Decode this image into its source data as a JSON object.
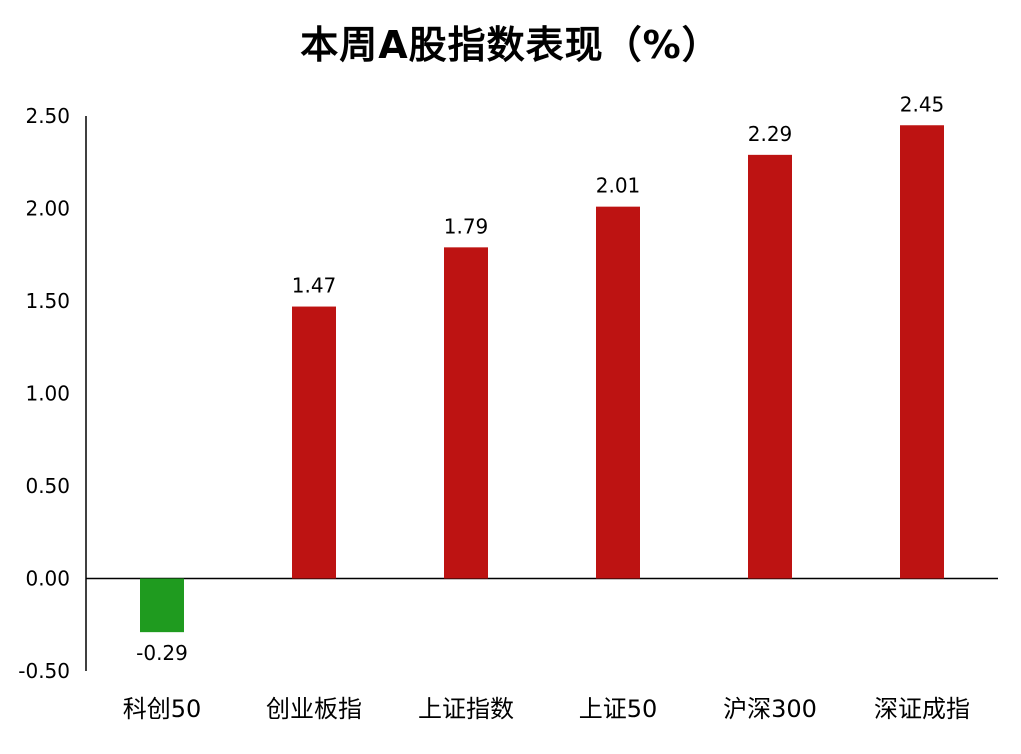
{
  "chart_data": {
    "type": "bar",
    "title": "本周A股指数表现（%）",
    "categories": [
      "科创50",
      "创业板指",
      "上证指数",
      "上证50",
      "沪深300",
      "深证成指"
    ],
    "values": [
      -0.29,
      1.47,
      1.79,
      2.01,
      2.29,
      2.45
    ],
    "data_labels": [
      "-0.29",
      "1.47",
      "1.79",
      "2.01",
      "2.29",
      "2.45"
    ],
    "ylim": [
      -0.5,
      2.5
    ],
    "yticks": [
      "2.50",
      "2.00",
      "1.50",
      "1.00",
      "0.50",
      "0.00",
      "-0.50"
    ],
    "ytick_values": [
      2.5,
      2.0,
      1.5,
      1.0,
      0.5,
      0.0,
      -0.5
    ],
    "xlabel": "",
    "ylabel": "",
    "grid": false,
    "colors": {
      "positive": "#BD1312",
      "negative": "#1F9B1F",
      "axis": "#000000"
    }
  }
}
